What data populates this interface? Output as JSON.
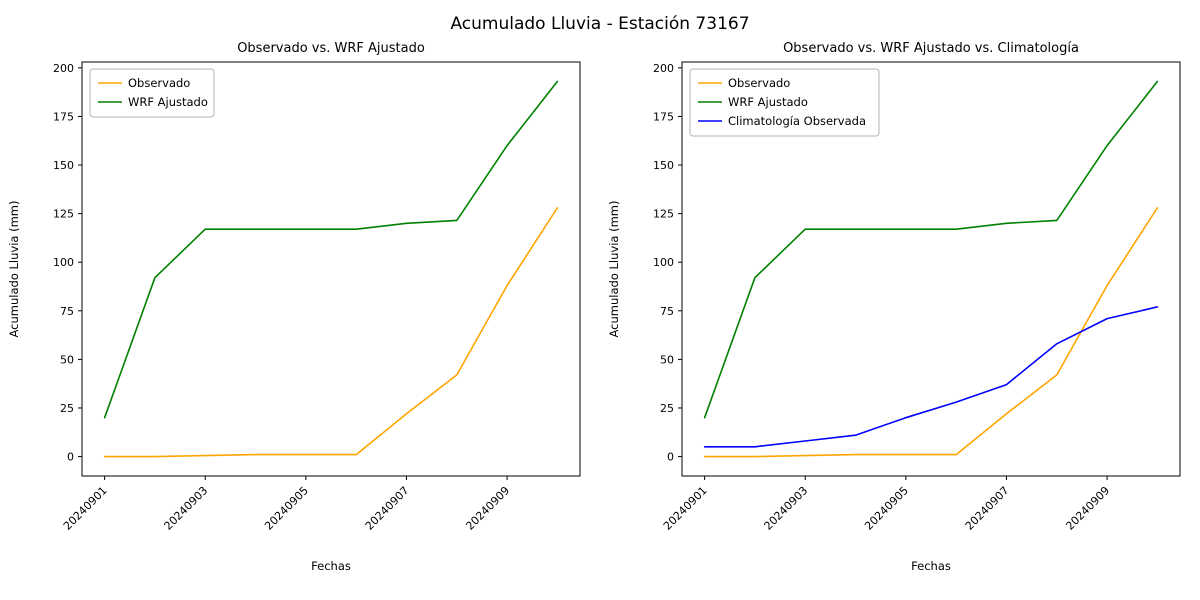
{
  "figure": {
    "title": "Acumulado Lluvia - Estación 73167",
    "background_color": "#ffffff"
  },
  "colors": {
    "observado": "#ffa500",
    "wrf_ajustado": "#008000",
    "climatologia": "#0000ff",
    "axis": "#000000",
    "legend_border": "#b3b3b3"
  },
  "chart_data": [
    {
      "type": "line",
      "title": "Observado vs. WRF Ajustado",
      "xlabel": "Fechas",
      "ylabel": "Acumulado Lluvia (mm)",
      "x": [
        "20240901",
        "20240902",
        "20240903",
        "20240904",
        "20240905",
        "20240906",
        "20240907",
        "20240908",
        "20240909",
        "20240910"
      ],
      "xtick_indices": [
        0,
        2,
        4,
        6,
        8
      ],
      "xtick_labels": [
        "20240901",
        "20240903",
        "20240905",
        "20240907",
        "20240909"
      ],
      "yticks": [
        0,
        25,
        50,
        75,
        100,
        125,
        150,
        175,
        200
      ],
      "ylim": [
        -10,
        203
      ],
      "grid": false,
      "legend_position": "upper left",
      "series": [
        {
          "name": "Observado",
          "color": "#ffa500",
          "values": [
            0,
            0,
            0.5,
            1,
            1,
            1,
            22,
            42,
            88,
            128
          ]
        },
        {
          "name": "WRF Ajustado",
          "color": "#008000",
          "values": [
            20,
            92,
            117,
            117,
            117,
            117,
            120,
            121.5,
            160,
            193
          ]
        }
      ]
    },
    {
      "type": "line",
      "title": "Observado vs. WRF Ajustado vs. Climatología",
      "xlabel": "Fechas",
      "ylabel": "Acumulado Lluvia (mm)",
      "x": [
        "20240901",
        "20240902",
        "20240903",
        "20240904",
        "20240905",
        "20240906",
        "20240907",
        "20240908",
        "20240909",
        "20240910"
      ],
      "xtick_indices": [
        0,
        2,
        4,
        6,
        8
      ],
      "xtick_labels": [
        "20240901",
        "20240903",
        "20240905",
        "20240907",
        "20240909"
      ],
      "yticks": [
        0,
        25,
        50,
        75,
        100,
        125,
        150,
        175,
        200
      ],
      "ylim": [
        -10,
        203
      ],
      "grid": false,
      "legend_position": "upper left",
      "series": [
        {
          "name": "Observado",
          "color": "#ffa500",
          "values": [
            0,
            0,
            0.5,
            1,
            1,
            1,
            22,
            42,
            88,
            128
          ]
        },
        {
          "name": "WRF Ajustado",
          "color": "#008000",
          "values": [
            20,
            92,
            117,
            117,
            117,
            117,
            120,
            121.5,
            160,
            193
          ]
        },
        {
          "name": "Climatología Observada",
          "color": "#0000ff",
          "values": [
            5,
            5,
            8,
            11,
            20,
            28,
            37,
            58,
            71,
            77
          ]
        }
      ]
    }
  ]
}
